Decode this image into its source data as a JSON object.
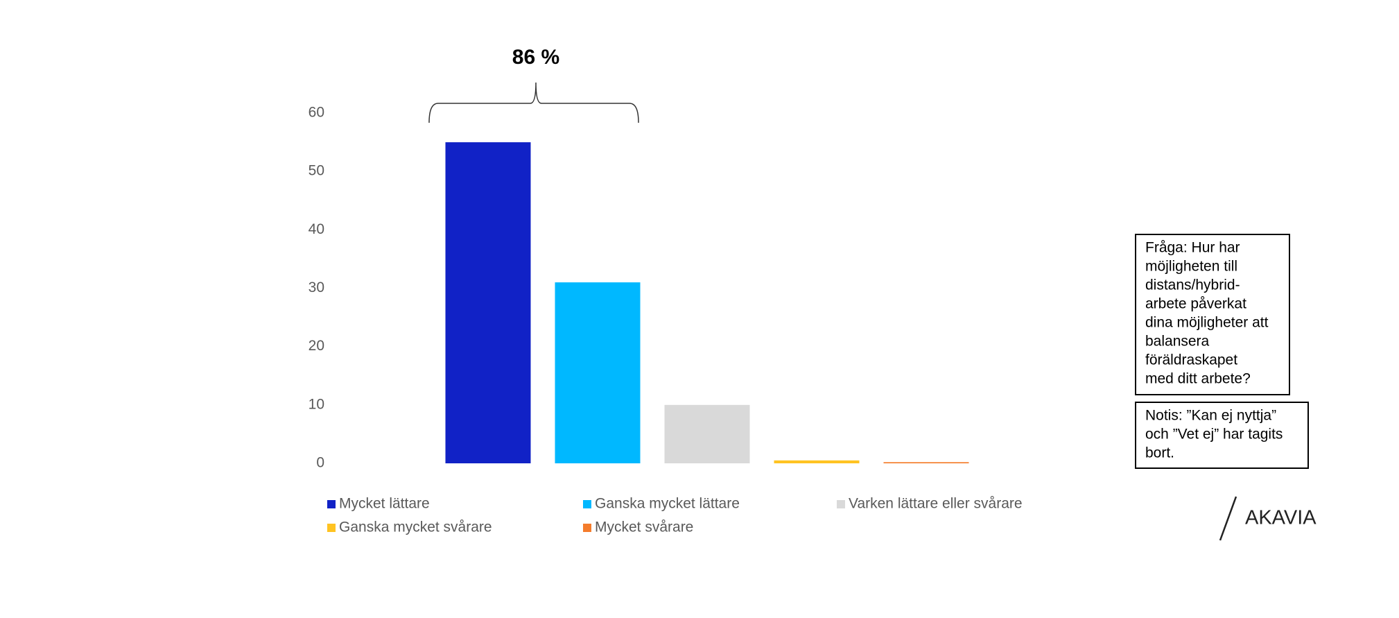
{
  "chart_data": {
    "type": "bar",
    "categories": [
      "Mycket lättare",
      "Ganska mycket lättare",
      "Varken lättare eller svårare",
      "Ganska mycket svårare",
      "Mycket svårare"
    ],
    "values": [
      55,
      31,
      10,
      0.5,
      0.2
    ],
    "colors": [
      "#1122c6",
      "#00b8ff",
      "#d9d9d9",
      "#ffc322",
      "#f47c2c"
    ],
    "ylim": [
      0,
      60
    ],
    "yticks": [
      0,
      10,
      20,
      30,
      40,
      50,
      60
    ],
    "grid": false,
    "annotation": "86 %"
  },
  "question_lines": [
    "Fråga: Hur har",
    "möjligheten till",
    "distans/hybrid-",
    "arbete påverkat",
    "dina möjligheter att",
    "balansera",
    "föräldraskapet",
    "med ditt arbete?"
  ],
  "note_lines": [
    "Notis: ”Kan ej nyttja”",
    "och ”Vet ej” har tagits",
    "bort."
  ],
  "logo": "AKAVIA"
}
